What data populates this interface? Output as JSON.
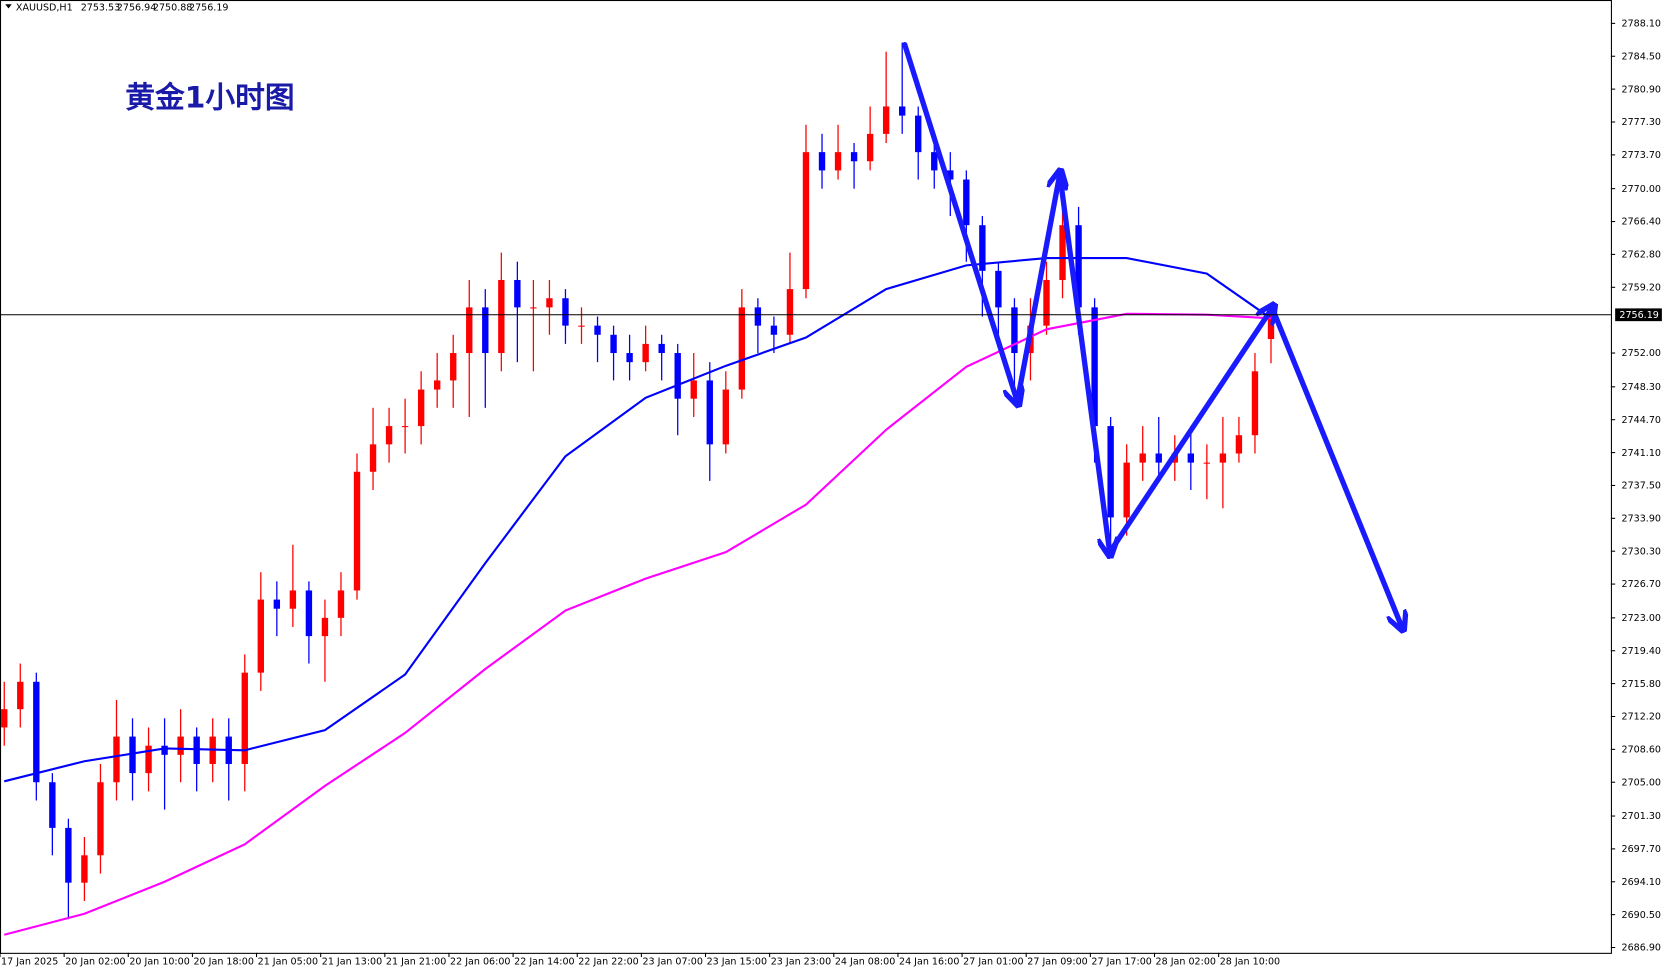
{
  "chart_data": {
    "type": "candlestick",
    "title": "黄金1小时图",
    "symbol": "XAUUSD,H1",
    "categories": [
      "17 Jan 2025",
      null,
      null,
      null,
      "20 Jan 02:00",
      null,
      null,
      null,
      "20 Jan 10:00",
      null,
      null,
      null,
      "20 Jan 18:00",
      null,
      null,
      null,
      "21 Jan 05:00",
      null,
      null,
      null,
      "21 Jan 13:00",
      null,
      null,
      null,
      "21 Jan 21:00",
      null,
      null,
      null,
      "22 Jan 06:00",
      null,
      null,
      null,
      "22 Jan 14:00",
      null,
      null,
      null,
      "22 Jan 22:00",
      null,
      null,
      null,
      "23 Jan 07:00",
      null,
      null,
      null,
      "23 Jan 15:00",
      null,
      null,
      null,
      "23 Jan 23:00",
      null,
      null,
      null,
      "24 Jan 08:00",
      null,
      null,
      null,
      "24 Jan 16:00",
      null,
      null,
      null,
      "27 Jan 01:00",
      null,
      null,
      null,
      "27 Jan 09:00",
      null,
      null,
      null,
      "27 Jan 17:00",
      null,
      null,
      null,
      "28 Jan 02:00",
      null,
      null,
      null,
      "28 Jan 10:00",
      null,
      null,
      null
    ],
    "open": [
      2711,
      2713,
      2716,
      2705,
      2700,
      2694,
      2697,
      2705,
      2710,
      2706,
      2709,
      2708,
      2710,
      2707,
      2710,
      2707,
      2717,
      2725,
      2724,
      2726,
      2721,
      2723,
      2726,
      2739,
      2742,
      2744,
      2744,
      2748,
      2749,
      2752,
      2757,
      2752,
      2760,
      2757,
      2757,
      2758,
      2755,
      2755,
      2754,
      2752,
      2751,
      2753,
      2752,
      2747,
      2749,
      2742,
      2748,
      2757,
      2755,
      2754,
      2759,
      2774,
      2772,
      2774,
      2773,
      2776,
      2779,
      2778,
      2774,
      2772,
      2771,
      2766,
      2761,
      2757,
      2752,
      2755,
      2760,
      2766,
      2757,
      2744,
      2734,
      2740,
      2741,
      2740,
      2741,
      2740,
      2740,
      2741,
      2743,
      2753.53
    ],
    "high": [
      2716,
      2718,
      2717,
      2706,
      2701,
      2699,
      2707,
      2714,
      2712,
      2711,
      2712,
      2713,
      2711,
      2712,
      2712,
      2719,
      2728,
      2727,
      2731,
      2727,
      2725,
      2728,
      2741,
      2746,
      2746,
      2747,
      2750,
      2752,
      2754,
      2760,
      2759,
      2763,
      2762,
      2760,
      2760,
      2759,
      2757,
      2756,
      2755,
      2754,
      2755,
      2754,
      2753,
      2752,
      2751,
      2750,
      2759,
      2758,
      2756,
      2763,
      2777,
      2776,
      2777,
      2775,
      2779,
      2785,
      2786,
      2779,
      2775,
      2774,
      2772,
      2767,
      2762,
      2758,
      2758,
      2762,
      2771,
      2768,
      2758,
      2745,
      2742,
      2744,
      2745,
      2743,
      2744,
      2742,
      2745,
      2745,
      2752,
      2756.94
    ],
    "low": [
      2709,
      2711,
      2703,
      2697,
      2690,
      2692,
      2695,
      2703,
      2703,
      2704,
      2702,
      2705,
      2704,
      2705,
      2703,
      2704,
      2715,
      2721,
      2722,
      2718,
      2716,
      2721,
      2725,
      2737,
      2740,
      2741,
      2742,
      2746,
      2746,
      2745,
      2746,
      2750,
      2751,
      2750,
      2754,
      2753,
      2753,
      2751,
      2749,
      2749,
      2750,
      2749,
      2743,
      2745,
      2738,
      2741,
      2747,
      2752,
      2752,
      2753,
      2758,
      2770,
      2771,
      2770,
      2772,
      2775,
      2776,
      2771,
      2770,
      2767,
      2762,
      2756,
      2753,
      2748,
      2749,
      2754,
      2758,
      2754,
      2740,
      2731,
      2732,
      2738,
      2738,
      2738,
      2737,
      2736,
      2735,
      2740,
      2741,
      2750.88
    ],
    "close": [
      2713,
      2716,
      2705,
      2700,
      2694,
      2697,
      2705,
      2710,
      2706,
      2709,
      2708,
      2710,
      2707,
      2710,
      2707,
      2717,
      2725,
      2724,
      2726,
      2721,
      2723,
      2726,
      2739,
      2742,
      2744,
      2744,
      2748,
      2749,
      2752,
      2757,
      2752,
      2760,
      2757,
      2757,
      2758,
      2755,
      2755,
      2754,
      2752,
      2751,
      2753,
      2752,
      2747,
      2749,
      2742,
      2748,
      2757,
      2755,
      2754,
      2759,
      2774,
      2772,
      2774,
      2773,
      2776,
      2779,
      2778,
      2774,
      2772,
      2771,
      2766,
      2761,
      2757,
      2752,
      2755,
      2760,
      2766,
      2757,
      2744,
      2734,
      2740,
      2741,
      2740,
      2741,
      2740,
      2740,
      2741,
      2743,
      2750,
      2756.19
    ],
    "up_color": "#ff0000",
    "down_color": "#0000ff",
    "lines": [
      {
        "color": "#0000ff",
        "x": [
          0,
          5,
          10,
          15,
          20,
          25,
          30,
          35,
          40,
          45,
          50,
          55,
          60,
          65,
          70,
          75,
          79
        ],
        "values": [
          2705.1,
          2707.3,
          2708.7,
          2708.5,
          2710.7,
          2716.8,
          2729.0,
          2740.7,
          2747.1,
          2750.6,
          2753.7,
          2759.0,
          2761.6,
          2762.4,
          2762.4,
          2760.7,
          2755.8
        ]
      },
      {
        "color": "#ff00ff",
        "x": [
          0,
          5,
          10,
          15,
          20,
          25,
          30,
          35,
          40,
          45,
          50,
          55,
          60,
          65,
          70,
          75,
          79
        ],
        "values": [
          2688.3,
          2690.6,
          2694.1,
          2698.2,
          2704.6,
          2710.4,
          2717.4,
          2723.8,
          2727.3,
          2730.2,
          2735.4,
          2743.6,
          2750.5,
          2754.6,
          2756.3,
          2756.2,
          2755.8
        ]
      }
    ],
    "current_price": 2756.19,
    "ylim": [
      2686.32,
      2790.66
    ],
    "yticks": [
      {
        "value": 2788.1,
        "label": "2788.10"
      },
      {
        "value": 2784.5,
        "label": "2784.50"
      },
      {
        "value": 2780.9,
        "label": "2780.90"
      },
      {
        "value": 2777.3,
        "label": "2777.30"
      },
      {
        "value": 2773.7,
        "label": "2773.70"
      },
      {
        "value": 2770.0,
        "label": "2770.00"
      },
      {
        "value": 2766.4,
        "label": "2766.40"
      },
      {
        "value": 2762.8,
        "label": "2762.80"
      },
      {
        "value": 2759.2,
        "label": "2759.20"
      },
      {
        "value": 2752.0,
        "label": "2752.00"
      },
      {
        "value": 2748.3,
        "label": "2748.30"
      },
      {
        "value": 2744.7,
        "label": "2744.70"
      },
      {
        "value": 2741.1,
        "label": "2741.10"
      },
      {
        "value": 2737.5,
        "label": "2737.50"
      },
      {
        "value": 2733.9,
        "label": "2733.90"
      },
      {
        "value": 2730.3,
        "label": "2730.30"
      },
      {
        "value": 2726.7,
        "label": "2726.70"
      },
      {
        "value": 2723.0,
        "label": "2723.00"
      },
      {
        "value": 2719.4,
        "label": "2719.40"
      },
      {
        "value": 2715.8,
        "label": "2715.80"
      },
      {
        "value": 2712.2,
        "label": "2712.20"
      },
      {
        "value": 2708.6,
        "label": "2708.60"
      },
      {
        "value": 2705.0,
        "label": "2705.00"
      },
      {
        "value": 2701.3,
        "label": "2701.30"
      },
      {
        "value": 2697.7,
        "label": "2697.70"
      },
      {
        "value": 2694.1,
        "label": "2694.10"
      },
      {
        "value": 2690.5,
        "label": "2690.50"
      },
      {
        "value": 2686.9,
        "label": "2686.90"
      }
    ]
  }
}
